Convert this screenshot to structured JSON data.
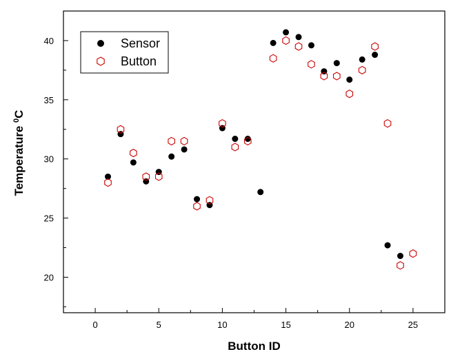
{
  "chart_data": {
    "type": "scatter",
    "xlabel": "Button ID",
    "ylabel": "Temperature ",
    "ylabel_sup": "0",
    "ylabel_unit": "C",
    "xlim": [
      -2.5,
      27.5
    ],
    "ylim": [
      17,
      42.5
    ],
    "x_ticks": [
      0,
      5,
      10,
      15,
      20,
      25
    ],
    "y_ticks": [
      20,
      25,
      30,
      35,
      40
    ],
    "x_tick_labels": [
      "0",
      "5",
      "10",
      "15",
      "20",
      "25"
    ],
    "y_tick_labels": [
      "20",
      "25",
      "30",
      "35",
      "40"
    ],
    "legend_position": "top-left",
    "series": [
      {
        "name": "Sensor",
        "marker": "filled-circle",
        "color": "#000000",
        "points": [
          {
            "x": 1,
            "y": 28.5
          },
          {
            "x": 2,
            "y": 32.1
          },
          {
            "x": 3,
            "y": 29.7
          },
          {
            "x": 4,
            "y": 28.1
          },
          {
            "x": 5,
            "y": 28.9
          },
          {
            "x": 6,
            "y": 30.2
          },
          {
            "x": 7,
            "y": 30.8
          },
          {
            "x": 8,
            "y": 26.6
          },
          {
            "x": 9,
            "y": 26.1
          },
          {
            "x": 10,
            "y": 32.6
          },
          {
            "x": 11,
            "y": 31.7
          },
          {
            "x": 12,
            "y": 31.7
          },
          {
            "x": 13,
            "y": 27.2
          },
          {
            "x": 14,
            "y": 39.8
          },
          {
            "x": 15,
            "y": 40.7
          },
          {
            "x": 16,
            "y": 40.3
          },
          {
            "x": 17,
            "y": 39.6
          },
          {
            "x": 18,
            "y": 37.4
          },
          {
            "x": 19,
            "y": 38.1
          },
          {
            "x": 20,
            "y": 36.7
          },
          {
            "x": 21,
            "y": 38.4
          },
          {
            "x": 22,
            "y": 38.8
          },
          {
            "x": 23,
            "y": 22.7
          },
          {
            "x": 24,
            "y": 21.8
          }
        ]
      },
      {
        "name": "Button",
        "marker": "hollow-hexagon",
        "color": "#cc0000",
        "points": [
          {
            "x": 1,
            "y": 28.0
          },
          {
            "x": 2,
            "y": 32.5
          },
          {
            "x": 3,
            "y": 30.5
          },
          {
            "x": 4,
            "y": 28.5
          },
          {
            "x": 5,
            "y": 28.5
          },
          {
            "x": 6,
            "y": 31.5
          },
          {
            "x": 7,
            "y": 31.5
          },
          {
            "x": 8,
            "y": 26.0
          },
          {
            "x": 9,
            "y": 26.5
          },
          {
            "x": 10,
            "y": 33.0
          },
          {
            "x": 11,
            "y": 31.0
          },
          {
            "x": 12,
            "y": 31.5
          },
          {
            "x": 14,
            "y": 38.5
          },
          {
            "x": 15,
            "y": 40.0
          },
          {
            "x": 16,
            "y": 39.5
          },
          {
            "x": 17,
            "y": 38.0
          },
          {
            "x": 18,
            "y": 37.0
          },
          {
            "x": 19,
            "y": 37.0
          },
          {
            "x": 20,
            "y": 35.5
          },
          {
            "x": 21,
            "y": 37.5
          },
          {
            "x": 22,
            "y": 39.5
          },
          {
            "x": 23,
            "y": 33.0
          },
          {
            "x": 24,
            "y": 21.0
          },
          {
            "x": 25,
            "y": 22.0
          }
        ]
      }
    ]
  }
}
